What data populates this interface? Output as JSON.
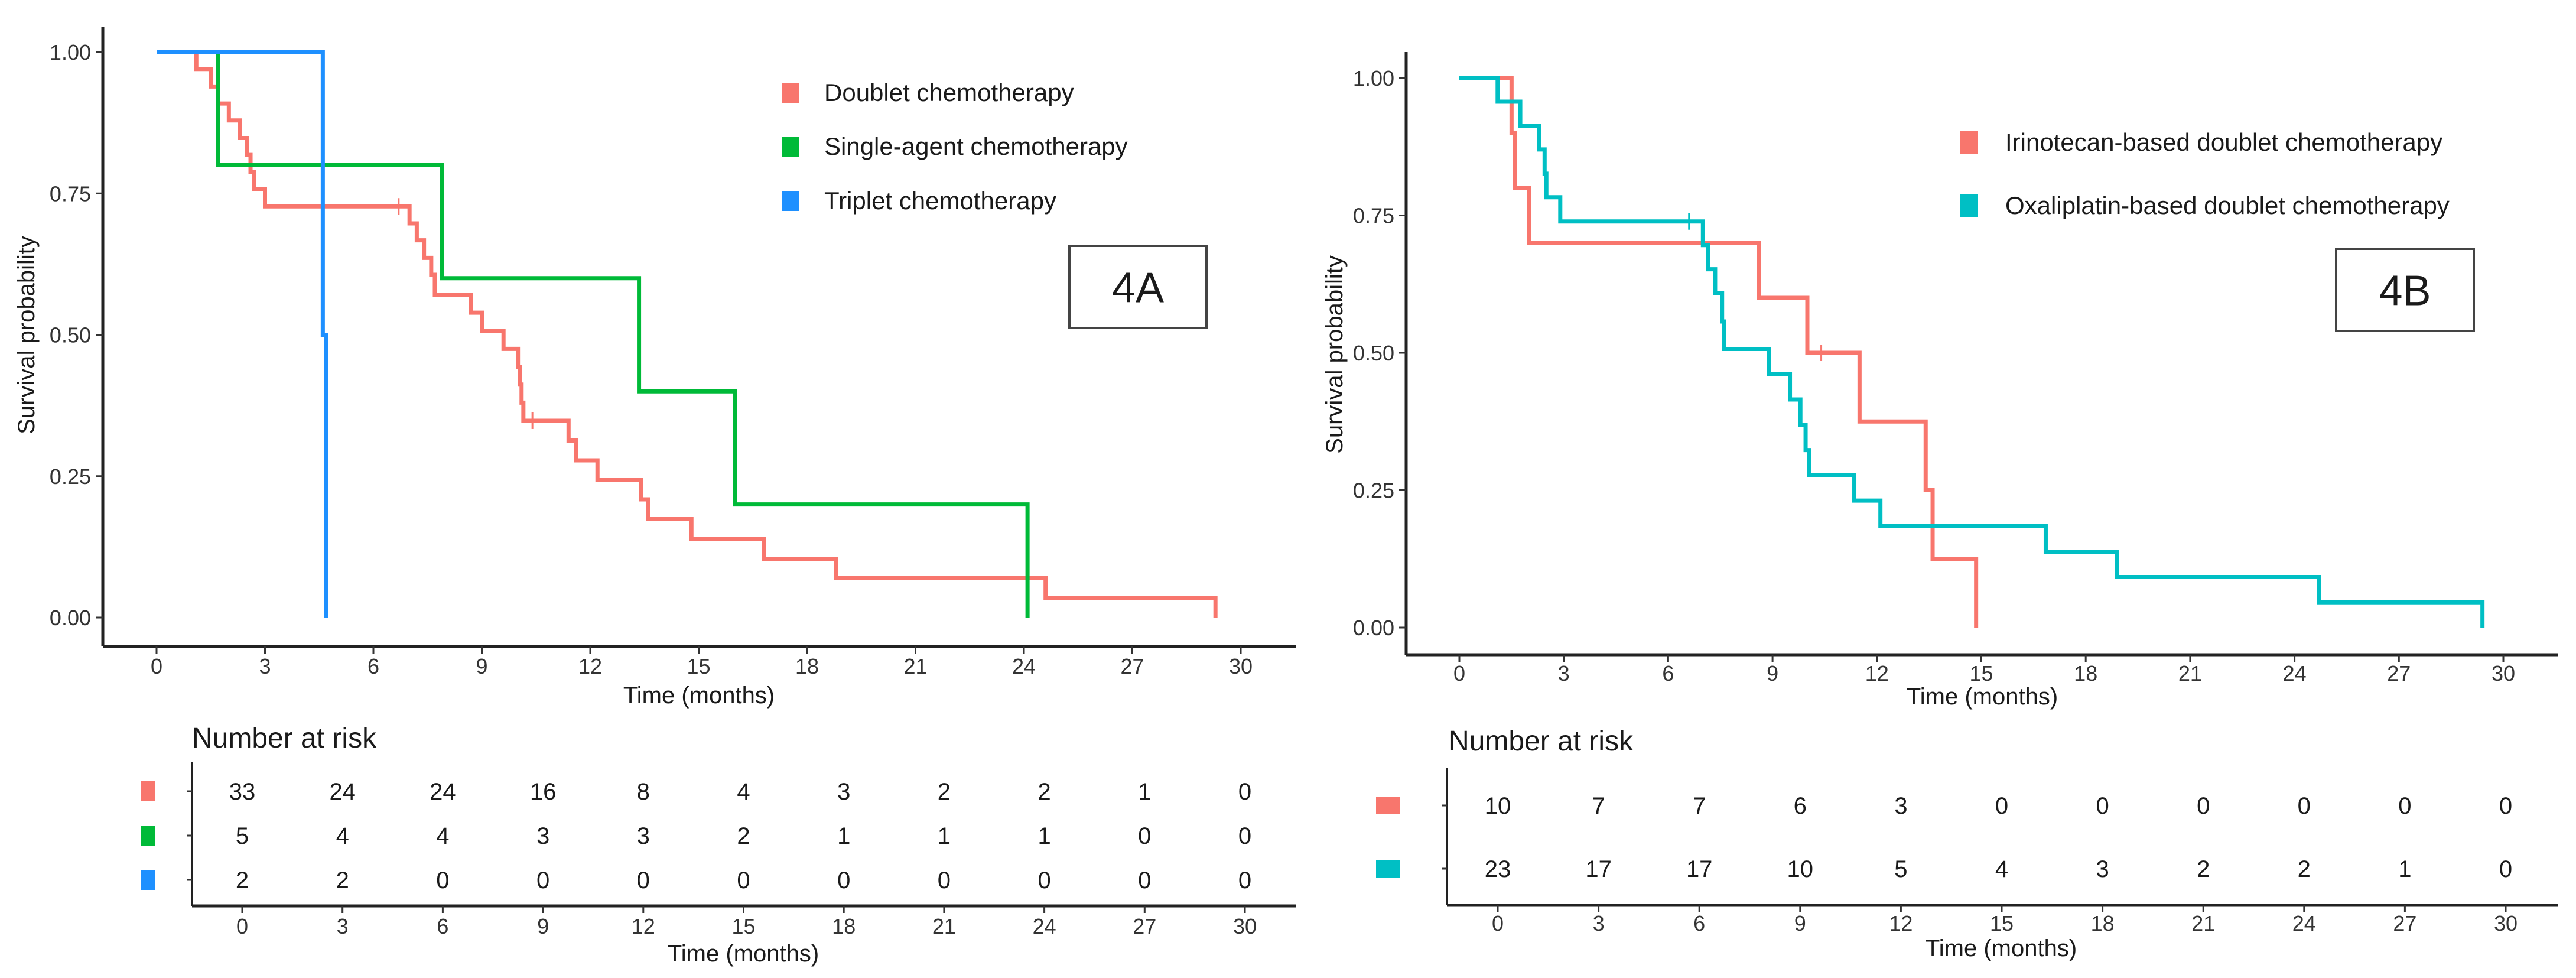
{
  "chart_data": [
    {
      "type": "line",
      "subtype": "kaplan-meier",
      "panel_label": "4A",
      "xlabel": "Time (months)",
      "ylabel": "Survival probability",
      "xlim": [
        0,
        30
      ],
      "ylim": [
        0,
        1
      ],
      "xticks": [
        0,
        3,
        6,
        9,
        12,
        15,
        18,
        21,
        24,
        27,
        30
      ],
      "yticks": [
        "0.00",
        "0.25",
        "0.50",
        "0.75",
        "1.00"
      ],
      "legend_position": "top-right",
      "series": [
        {
          "name": "Doublet chemotherapy",
          "color": "#F8766D",
          "steps": [
            [
              0,
              1.0
            ],
            [
              1.1,
              0.97
            ],
            [
              1.5,
              0.939
            ],
            [
              1.7,
              0.909
            ],
            [
              2.0,
              0.879
            ],
            [
              2.3,
              0.848
            ],
            [
              2.5,
              0.818
            ],
            [
              2.6,
              0.788
            ],
            [
              2.7,
              0.758
            ],
            [
              3.0,
              0.727
            ],
            [
              7.0,
              0.697
            ],
            [
              7.2,
              0.667
            ],
            [
              7.4,
              0.636
            ],
            [
              7.6,
              0.606
            ],
            [
              7.7,
              0.57
            ],
            [
              8.7,
              0.539
            ],
            [
              9.0,
              0.507
            ],
            [
              9.6,
              0.475
            ],
            [
              10.0,
              0.443
            ],
            [
              10.05,
              0.412
            ],
            [
              10.1,
              0.38
            ],
            [
              10.15,
              0.348
            ],
            [
              11.4,
              0.313
            ],
            [
              11.6,
              0.278
            ],
            [
              12.2,
              0.243
            ],
            [
              13.4,
              0.209
            ],
            [
              13.6,
              0.174
            ],
            [
              14.8,
              0.139
            ],
            [
              16.8,
              0.104
            ],
            [
              18.8,
              0.07
            ],
            [
              24.6,
              0.035
            ],
            [
              29.3,
              0.0
            ]
          ],
          "end": 29.3,
          "censored": [
            [
              6.7,
              0.727
            ],
            [
              10.4,
              0.348
            ]
          ]
        },
        {
          "name": "Single-agent chemotherapy",
          "color": "#00BA38",
          "steps": [
            [
              0,
              1.0
            ],
            [
              1.7,
              0.8
            ],
            [
              7.9,
              0.6
            ],
            [
              13.35,
              0.4
            ],
            [
              16.0,
              0.2
            ],
            [
              24.1,
              0.0
            ]
          ],
          "end": 24.1,
          "censored": []
        },
        {
          "name": "Triplet chemotherapy",
          "color": "#1E90FF",
          "steps": [
            [
              0,
              1.0
            ],
            [
              4.6,
              0.5
            ],
            [
              4.7,
              0.0
            ]
          ],
          "end": 4.7,
          "censored": []
        }
      ],
      "risk_table": {
        "title": "Number at risk",
        "xlabel": "Time (months)",
        "times": [
          0,
          3,
          6,
          9,
          12,
          15,
          18,
          21,
          24,
          27,
          30
        ],
        "rows": [
          {
            "series": "Doublet chemotherapy",
            "color": "#F8766D",
            "values": [
              33,
              24,
              24,
              16,
              8,
              4,
              3,
              2,
              2,
              1,
              0
            ]
          },
          {
            "series": "Single-agent chemotherapy",
            "color": "#00BA38",
            "values": [
              5,
              4,
              4,
              3,
              3,
              2,
              1,
              1,
              1,
              0,
              0
            ]
          },
          {
            "series": "Triplet chemotherapy",
            "color": "#1E90FF",
            "values": [
              2,
              2,
              0,
              0,
              0,
              0,
              0,
              0,
              0,
              0,
              0
            ]
          }
        ]
      }
    },
    {
      "type": "line",
      "subtype": "kaplan-meier",
      "panel_label": "4B",
      "xlabel": "Time (months)",
      "ylabel": "Survival probability",
      "xlim": [
        0,
        30
      ],
      "ylim": [
        0,
        1
      ],
      "xticks": [
        0,
        3,
        6,
        9,
        12,
        15,
        18,
        21,
        24,
        27,
        30
      ],
      "yticks": [
        "0.00",
        "0.25",
        "0.50",
        "0.75",
        "1.00"
      ],
      "legend_position": "top-right",
      "series": [
        {
          "name": "Irinotecan-based doublet chemotherapy",
          "color": "#F8766D",
          "steps": [
            [
              0,
              1.0
            ],
            [
              1.5,
              0.9
            ],
            [
              1.6,
              0.8
            ],
            [
              2.0,
              0.7
            ],
            [
              8.6,
              0.6
            ],
            [
              10.0,
              0.5
            ],
            [
              11.5,
              0.375
            ],
            [
              13.4,
              0.25
            ],
            [
              13.6,
              0.125
            ],
            [
              14.85,
              0.0
            ]
          ],
          "end": 14.85,
          "censored": [
            [
              10.4,
              0.5
            ]
          ]
        },
        {
          "name": "Oxaliplatin-based doublet chemotherapy",
          "color": "#00BFC4",
          "steps": [
            [
              0,
              1.0
            ],
            [
              1.1,
              0.957
            ],
            [
              1.75,
              0.913
            ],
            [
              2.3,
              0.87
            ],
            [
              2.45,
              0.826
            ],
            [
              2.5,
              0.783
            ],
            [
              2.9,
              0.739
            ],
            [
              7.0,
              0.696
            ],
            [
              7.15,
              0.652
            ],
            [
              7.35,
              0.609
            ],
            [
              7.55,
              0.557
            ],
            [
              7.6,
              0.507
            ],
            [
              8.9,
              0.461
            ],
            [
              9.5,
              0.415
            ],
            [
              9.8,
              0.369
            ],
            [
              9.95,
              0.323
            ],
            [
              10.05,
              0.277
            ],
            [
              11.35,
              0.231
            ],
            [
              12.1,
              0.185
            ],
            [
              16.85,
              0.138
            ],
            [
              18.9,
              0.092
            ],
            [
              24.7,
              0.046
            ],
            [
              29.4,
              0.0
            ]
          ],
          "end": 29.4,
          "censored": [
            [
              6.6,
              0.739
            ]
          ]
        }
      ],
      "risk_table": {
        "title": "Number at risk",
        "xlabel": "Time (months)",
        "times": [
          0,
          3,
          6,
          9,
          12,
          15,
          18,
          21,
          24,
          27,
          30
        ],
        "rows": [
          {
            "series": "Irinotecan-based doublet chemotherapy",
            "color": "#F8766D",
            "values": [
              10,
              7,
              7,
              6,
              3,
              0,
              0,
              0,
              0,
              0,
              0
            ]
          },
          {
            "series": "Oxaliplatin-based doublet chemotherapy",
            "color": "#00BFC4",
            "values": [
              23,
              17,
              17,
              10,
              5,
              4,
              3,
              2,
              2,
              1,
              0
            ]
          }
        ]
      }
    }
  ]
}
